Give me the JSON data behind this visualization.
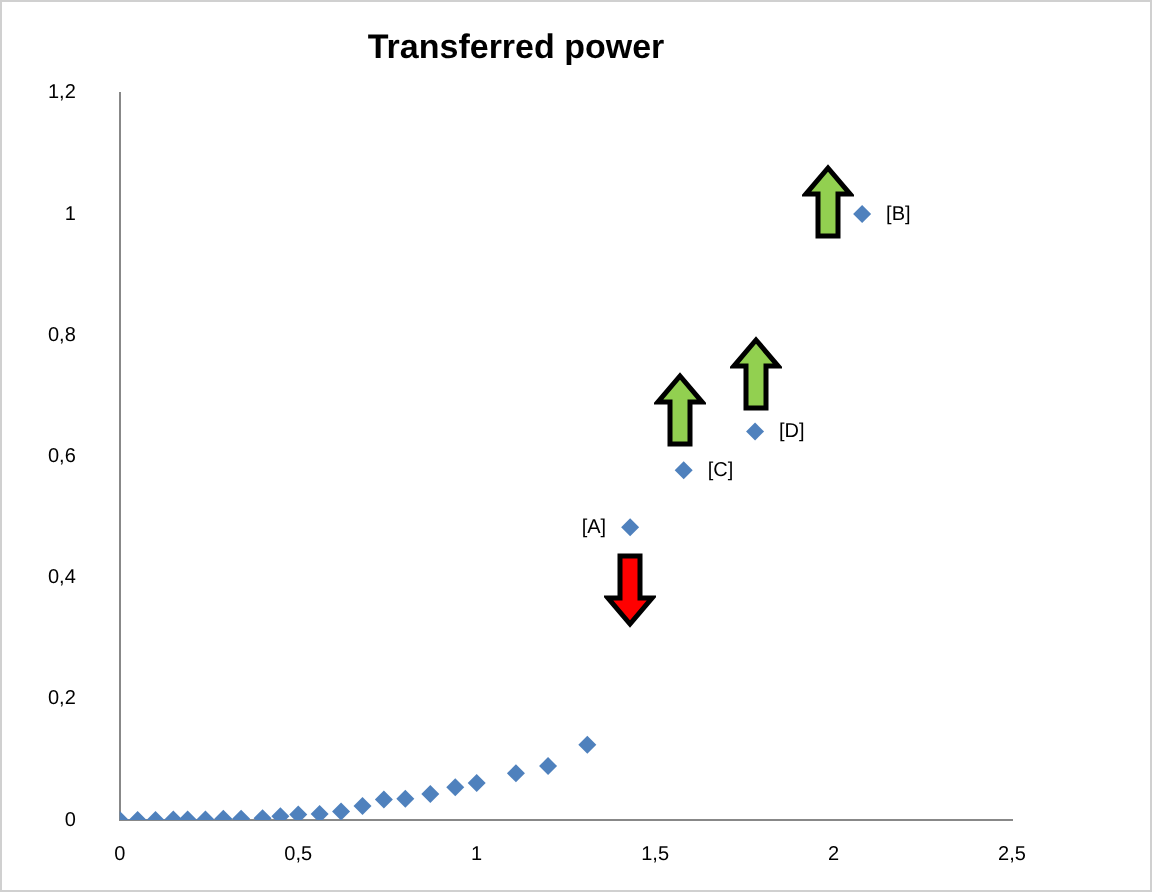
{
  "chart_data": {
    "type": "scatter",
    "title": "Transferred power",
    "marker": "diamond",
    "grid": false,
    "legend": false,
    "xlim": [
      0,
      2.5
    ],
    "xticks": [
      0,
      {
        "value": 0.5,
        "label": "0,5"
      },
      1,
      {
        "value": 1.5,
        "label": "1,5"
      },
      2,
      {
        "value": 2.5,
        "label": "2,5"
      }
    ],
    "ylim": [
      0,
      1.2
    ],
    "yticks": [
      0,
      {
        "value": 0.2,
        "label": "0,2"
      },
      {
        "value": 0.4,
        "label": "0,4"
      },
      {
        "value": 0.6,
        "label": "0,6"
      },
      {
        "value": 0.8,
        "label": "0,8"
      },
      1,
      {
        "value": 1.2,
        "label": "1,2"
      }
    ],
    "series": [
      {
        "color": "#4f81bd",
        "x": [
          0,
          0.05,
          0.1,
          0.15,
          0.19,
          0.24,
          0.29,
          0.34,
          0.4,
          0.45,
          0.5,
          0.56,
          0.62,
          0.68,
          0.74,
          0.8,
          0.87,
          0.94,
          1.0,
          1.11,
          1.2,
          1.31,
          1.43,
          1.58,
          1.78,
          2.08
        ],
        "values": [
          0,
          0,
          0,
          0.001,
          0.001,
          0.001,
          0.002,
          0.002,
          0.003,
          0.006,
          0.009,
          0.01,
          0.014,
          0.023,
          0.034,
          0.035,
          0.043,
          0.054,
          0.061,
          0.077,
          0.089,
          0.124,
          0.483,
          0.577,
          0.641,
          1.0
        ]
      }
    ],
    "annotations": [
      {
        "text": "[A]",
        "x": 1.43,
        "y": 0.483
      },
      {
        "text": "[C]",
        "x": 1.58,
        "y": 0.577
      },
      {
        "text": "[D]",
        "x": 1.78,
        "y": 0.641
      },
      {
        "text": "[B]",
        "x": 2.08,
        "y": 1.0
      }
    ]
  }
}
